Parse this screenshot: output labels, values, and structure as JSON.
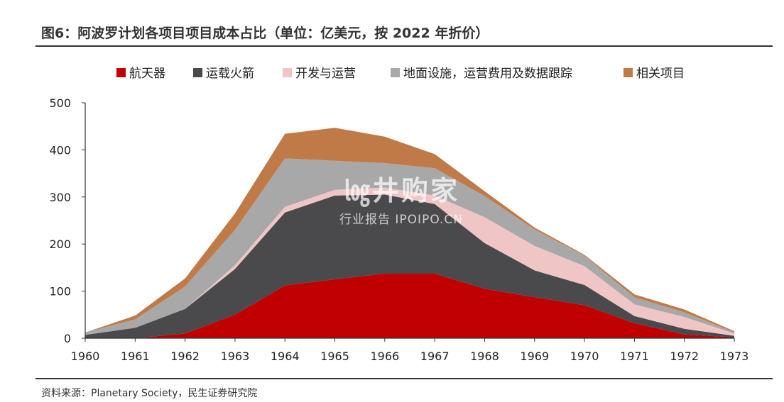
{
  "header": {
    "title": "图6：阿波罗计划各项目项目成本占比（单位：亿美元，按 2022 年折价）"
  },
  "footer": {
    "source": "资料来源：Planetary Society，民生证券研究院"
  },
  "watermark": {
    "logo": "㏒井购家",
    "sub": "行业报告 IPOIPO.CN"
  },
  "chart_data": {
    "type": "area",
    "stacked": true,
    "title": "",
    "xlabel": "",
    "ylabel": "",
    "ylim": [
      0,
      500
    ],
    "yticks": [
      "0",
      "100",
      "200",
      "300",
      "400",
      "500"
    ],
    "x": [
      "1960",
      "1961",
      "1962",
      "1963",
      "1964",
      "1965",
      "1966",
      "1967",
      "1968",
      "1969",
      "1970",
      "1971",
      "1972",
      "1973"
    ],
    "legend_position": "top",
    "grid": false,
    "series": [
      {
        "name": "航天器",
        "color": "#c00000",
        "values": [
          0,
          0,
          10,
          50,
          112,
          125,
          137,
          137,
          105,
          87,
          70,
          32,
          8,
          2
        ]
      },
      {
        "name": "运载火箭",
        "color": "#4a4a4c",
        "values": [
          7,
          22,
          52,
          97,
          155,
          178,
          168,
          148,
          97,
          57,
          43,
          15,
          12,
          3
        ]
      },
      {
        "name": "开发与运营",
        "color": "#efc5c5",
        "values": [
          0,
          0,
          0,
          8,
          12,
          12,
          15,
          18,
          55,
          52,
          40,
          25,
          25,
          5
        ]
      },
      {
        "name": "地面设施，运营费用及数据跟踪",
        "color": "#a8a8a8",
        "values": [
          5,
          18,
          48,
          75,
          103,
          62,
          52,
          58,
          45,
          35,
          22,
          15,
          10,
          3
        ]
      },
      {
        "name": "相关项目",
        "color": "#c07a48",
        "values": [
          0,
          8,
          17,
          35,
          52,
          70,
          56,
          30,
          10,
          4,
          2,
          6,
          6,
          2
        ]
      }
    ]
  }
}
